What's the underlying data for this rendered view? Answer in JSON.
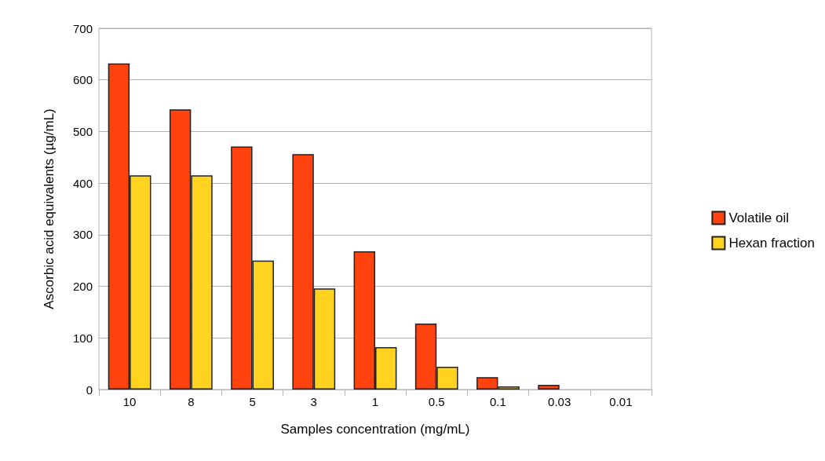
{
  "chart_data": {
    "type": "bar",
    "xlabel": "Samples concentration (mg/mL)",
    "ylabel": "Ascorbic acid equivalents (µg/mL)",
    "categories": [
      "10",
      "8",
      "5",
      "3",
      "1",
      "0.5",
      "0.1",
      "0.03",
      "0.01"
    ],
    "series": [
      {
        "name": "Volatile oil",
        "color": "#ff420e",
        "values": [
          632,
          543,
          471,
          456,
          268,
          128,
          24,
          9,
          0
        ]
      },
      {
        "name": "Hexan fraction",
        "color": "#ffd320",
        "values": [
          415,
          415,
          250,
          196,
          82,
          44,
          6,
          0,
          0
        ]
      }
    ],
    "ylim": [
      0,
      700
    ],
    "yticks": [
      0,
      100,
      200,
      300,
      400,
      500,
      600,
      700
    ],
    "grid": "y",
    "legend": "right"
  }
}
